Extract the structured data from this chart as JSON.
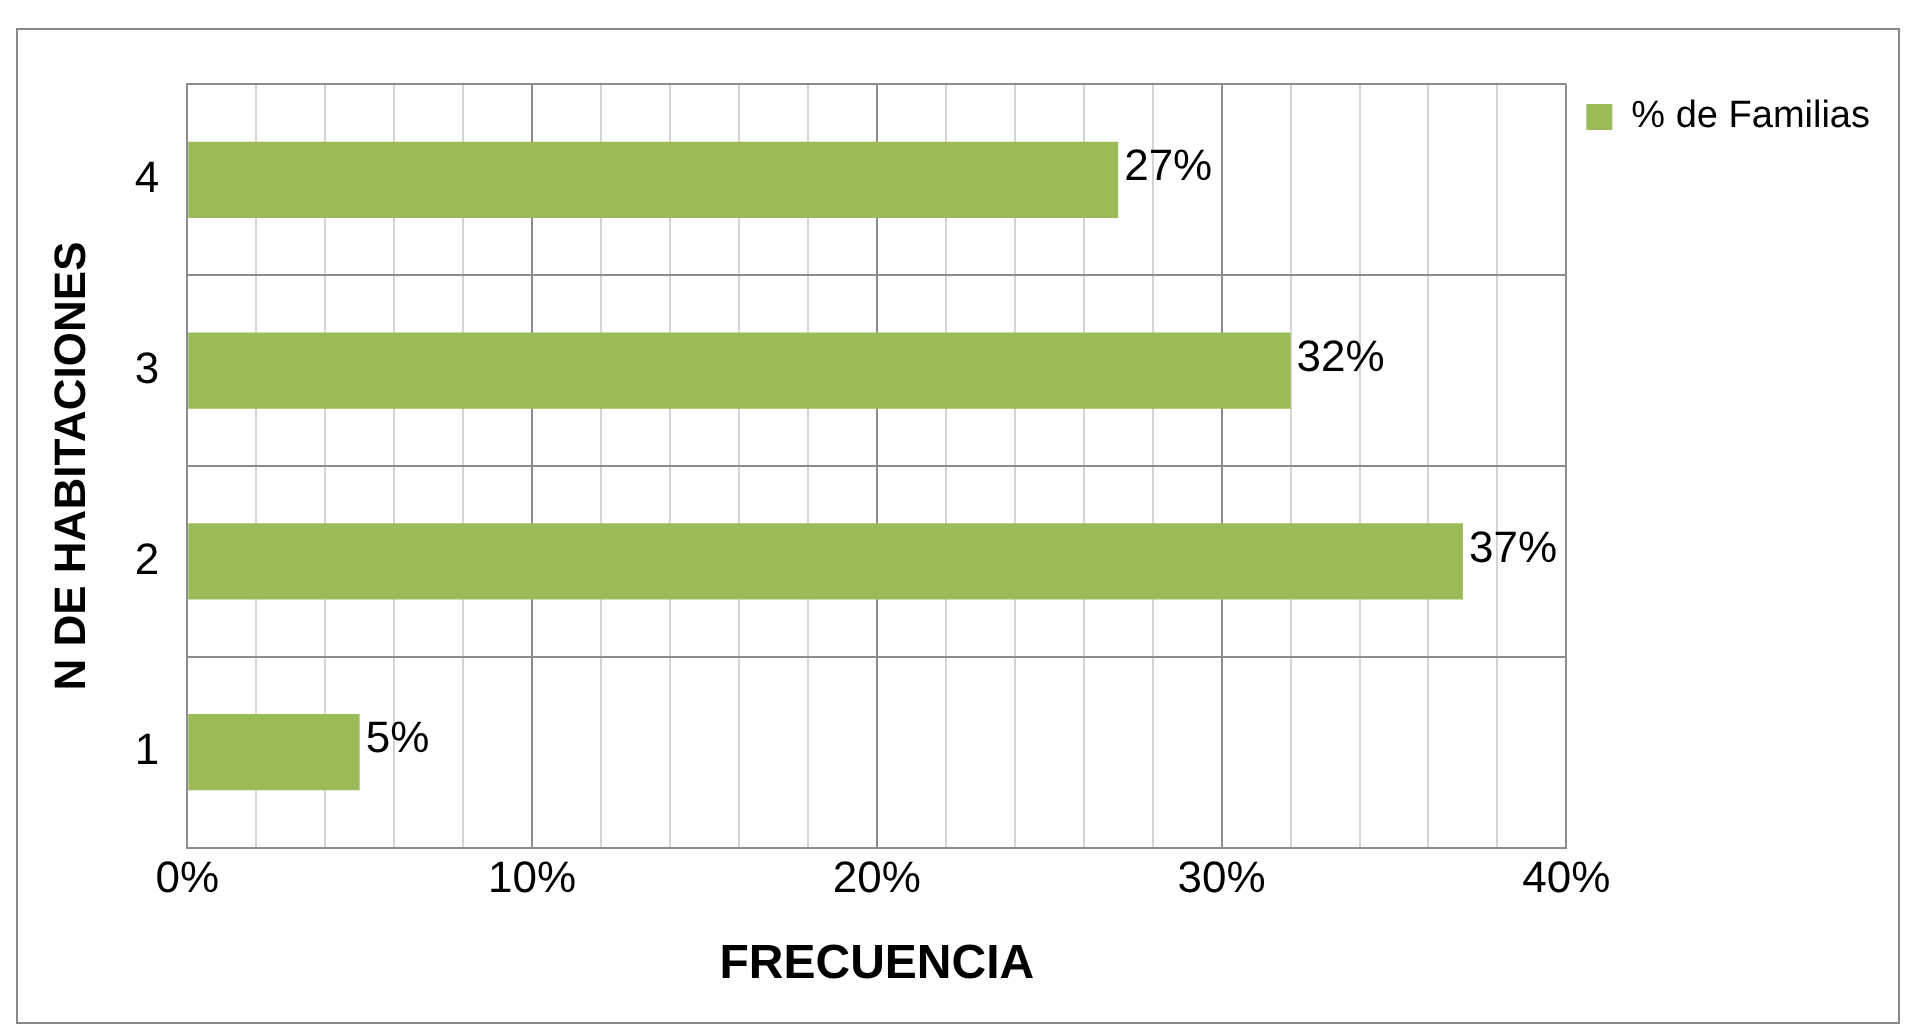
{
  "chart_data": {
    "type": "bar",
    "orientation": "horizontal",
    "xlabel": "FRECUENCIA",
    "ylabel": "N DE HABITACIONES",
    "categories": [
      "4",
      "3",
      "2",
      "1"
    ],
    "series": [
      {
        "name": "% de Familias",
        "color": "#9bbb59",
        "values": [
          27,
          32,
          37,
          5
        ],
        "value_labels": [
          "27%",
          "32%",
          "37%",
          "5%"
        ]
      }
    ],
    "xlim": [
      0,
      40
    ],
    "xticks": [
      {
        "value": 0,
        "label": "0%"
      },
      {
        "value": 2,
        "label": null
      },
      {
        "value": 4,
        "label": null
      },
      {
        "value": 6,
        "label": null
      },
      {
        "value": 8,
        "label": null
      },
      {
        "value": 10,
        "label": "10%"
      },
      {
        "value": 12,
        "label": null
      },
      {
        "value": 14,
        "label": null
      },
      {
        "value": 16,
        "label": null
      },
      {
        "value": 18,
        "label": null
      },
      {
        "value": 20,
        "label": "20%"
      },
      {
        "value": 22,
        "label": null
      },
      {
        "value": 24,
        "label": null
      },
      {
        "value": 26,
        "label": null
      },
      {
        "value": 28,
        "label": null
      },
      {
        "value": 30,
        "label": "30%"
      },
      {
        "value": 32,
        "label": null
      },
      {
        "value": 34,
        "label": null
      },
      {
        "value": 36,
        "label": null
      },
      {
        "value": 38,
        "label": null
      },
      {
        "value": 40,
        "label": "40%"
      }
    ],
    "grid": true,
    "legend": "right"
  }
}
